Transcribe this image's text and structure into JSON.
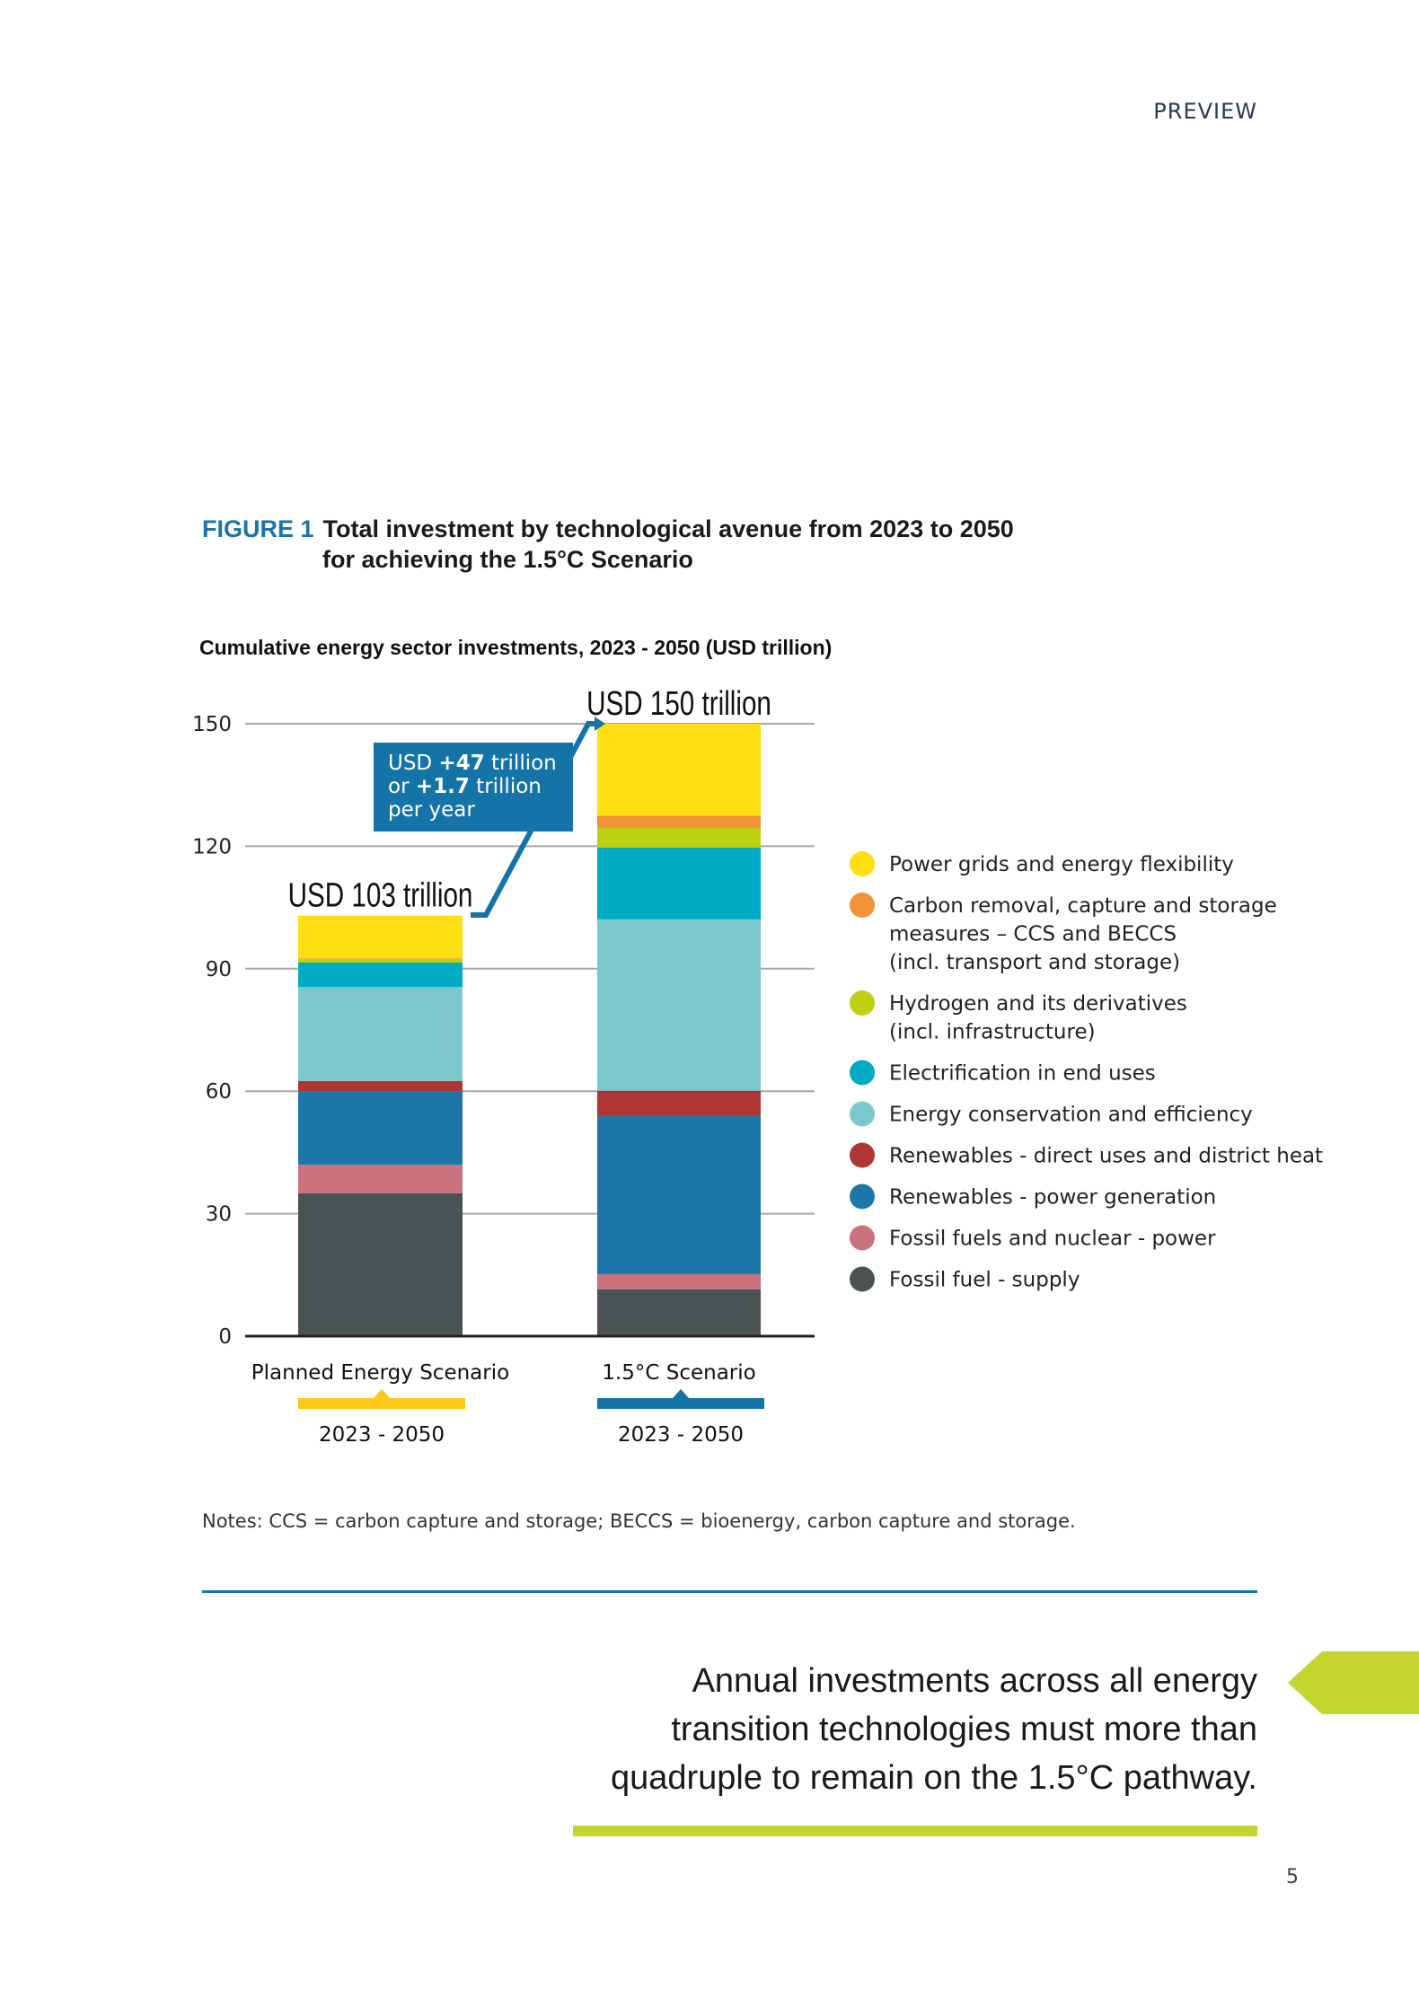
{
  "header": {
    "preview": "PREVIEW"
  },
  "figure": {
    "label": "FIGURE 1",
    "title_line1": "Total investment by technological avenue from 2023 to 2050",
    "title_line2": "for achieving the 1.5°C Scenario"
  },
  "chart_data": {
    "type": "bar",
    "stacked": true,
    "title": "Cumulative energy sector investments, 2023 - 2050 (USD trillion)",
    "ylim": [
      0,
      150
    ],
    "yticks": [
      "0",
      "30",
      "60",
      "90",
      "120",
      "150"
    ],
    "grid": true,
    "legend_position": "right",
    "categories": [
      {
        "name": "Planned Energy Scenario",
        "period": "2023 - 2050",
        "total_label": "USD 103 trillion",
        "color": "#fdc817"
      },
      {
        "name": "1.5°C Scenario",
        "period": "2023 - 2050",
        "total_label": "USD 150 trillion",
        "color": "#1474a8"
      }
    ],
    "series": [
      {
        "name": "Fossil fuel - supply",
        "color": "#4b5254",
        "values": [
          35,
          11.5
        ]
      },
      {
        "name": "Fossil fuels and nuclear - power",
        "color": "#cb727f",
        "values": [
          7,
          3.7
        ]
      },
      {
        "name": "Renewables - power generation",
        "color": "#1c76a8",
        "values": [
          18,
          38.7
        ]
      },
      {
        "name": "Renewables - direct uses and district heat",
        "color": "#b03636",
        "values": [
          2.5,
          6.2
        ]
      },
      {
        "name": "Energy conservation and efficiency",
        "color": "#7dc8cc",
        "values": [
          23,
          42
        ]
      },
      {
        "name": "Electrification in end uses",
        "color": "#00acc4",
        "values": [
          6,
          17.6
        ]
      },
      {
        "name": "Hydrogen and its derivatives (incl. infrastructure)",
        "color": "#bdd012",
        "values": [
          0.8,
          4.8
        ]
      },
      {
        "name": "Carbon removal, capture and storage measures – CCS and BECCS (incl. transport and storage)",
        "color": "#f39237",
        "values": [
          0.2,
          3
        ]
      },
      {
        "name": "Power grids and energy flexibility",
        "color": "#fddf12",
        "values": [
          10.5,
          22.5
        ]
      }
    ],
    "legend": [
      {
        "lines": [
          "Power grids and energy flexibility"
        ],
        "color": "#fddf12"
      },
      {
        "lines": [
          "Carbon removal, capture and storage",
          "measures – CCS and BECCS",
          "(incl. transport and storage)"
        ],
        "color": "#f39237"
      },
      {
        "lines": [
          "Hydrogen and its derivatives",
          "(incl. infrastructure)"
        ],
        "color": "#bdd012"
      },
      {
        "lines": [
          "Electrification in end uses"
        ],
        "color": "#00acc4"
      },
      {
        "lines": [
          "Energy conservation and efficiency"
        ],
        "color": "#7dc8cc"
      },
      {
        "lines": [
          "Renewables - direct uses and district heat"
        ],
        "color": "#b03636"
      },
      {
        "lines": [
          "Renewables - power generation"
        ],
        "color": "#1c76a8"
      },
      {
        "lines": [
          "Fossil fuels and nuclear - power"
        ],
        "color": "#cb727f"
      },
      {
        "lines": [
          "Fossil fuel - supply"
        ],
        "color": "#4b5254"
      }
    ],
    "annotation": {
      "lines": [
        [
          "USD ",
          "+47",
          " trillion"
        ],
        [
          "or ",
          "+1.7",
          " trillion"
        ],
        [
          "per year",
          "",
          ""
        ]
      ],
      "color": "#1474a8"
    }
  },
  "notes": "Notes: CCS = carbon capture and storage; BECCS = bioenergy, carbon capture and storage.",
  "quote": {
    "lines": [
      "Annual investments across all energy",
      "transition technologies must more than",
      "quadruple to remain on the 1.5°C pathway."
    ]
  },
  "colors": {
    "accent": "#1a75a8",
    "highlight": "#c5d52f"
  },
  "page_number": "5"
}
